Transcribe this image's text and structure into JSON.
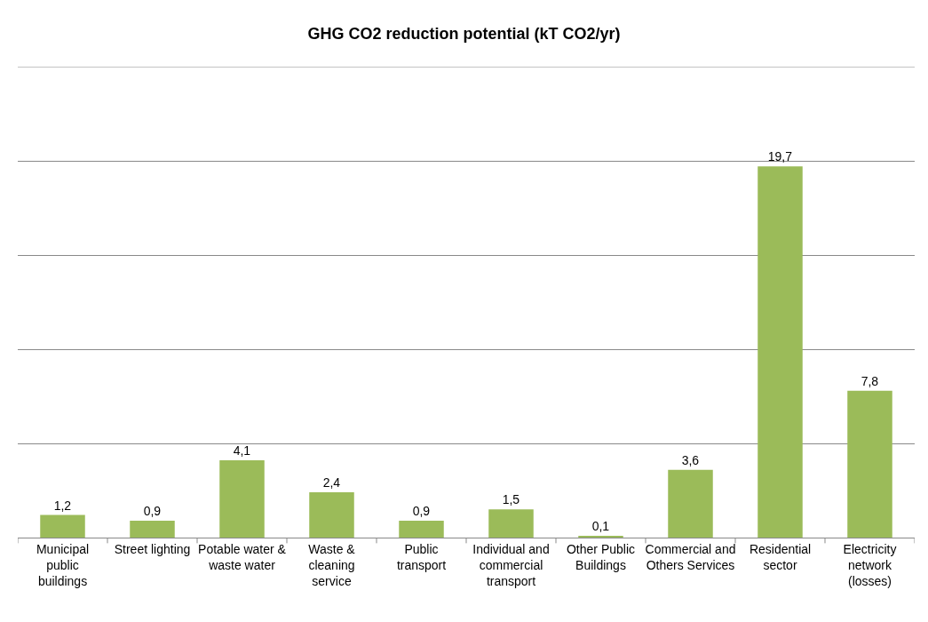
{
  "chart_data": {
    "type": "bar",
    "title": "GHG CO2 reduction potential (kT CO2/yr)",
    "categories": [
      "Municipal public buildings",
      "Street lighting",
      "Potable water & waste water",
      "Waste & cleaning service",
      "Public transport",
      "Individual and commercial transport",
      "Other Public Buildings",
      "Commercial and Others Services",
      "Residential sector",
      "Electricity network (losses)"
    ],
    "values": [
      1.2,
      0.9,
      4.1,
      2.4,
      0.9,
      1.5,
      0.1,
      3.6,
      19.7,
      7.8
    ],
    "value_labels": [
      "1,2",
      "0,9",
      "4,1",
      "2,4",
      "0,9",
      "1,5",
      "0,1",
      "3,6",
      "19,7",
      "7,8"
    ],
    "color": "#9bbb59",
    "ylim": [
      0,
      25
    ],
    "grid": "y",
    "tick_labels": "x"
  }
}
